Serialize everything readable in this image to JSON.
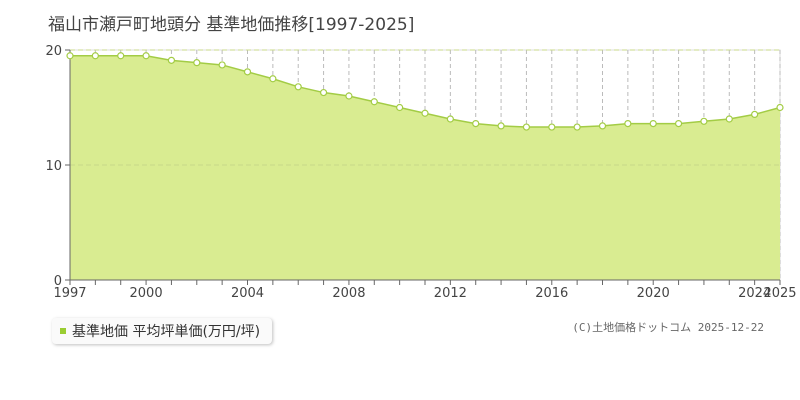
{
  "title": "福山市瀬戸町地頭分 基準地価推移[1997-2025]",
  "legend": {
    "label": "基準地価 平均坪単価(万円/坪)",
    "color": "#9acd32"
  },
  "copyright": "(C)土地価格ドットコム 2025-12-22",
  "colors": {
    "area_fill": "#d9ec91",
    "line": "#a3cc45",
    "marker_fill": "#ffffff",
    "grid": "#bbbbbb",
    "hgrid": "#c8d889",
    "axis": "#666666"
  },
  "chart_data": {
    "type": "area",
    "title": "",
    "xlabel": "",
    "ylabel": "",
    "xlim": [
      1997,
      2025
    ],
    "ylim": [
      0,
      20
    ],
    "yticks": [
      0,
      10,
      20
    ],
    "xtick_labels": [
      1997,
      2000,
      2004,
      2008,
      2012,
      2016,
      2020,
      2024,
      2025
    ],
    "grid": true,
    "series": [
      {
        "name": "基準地価 平均坪単価(万円/坪)",
        "x": [
          1997,
          1998,
          1999,
          2000,
          2001,
          2002,
          2003,
          2004,
          2005,
          2006,
          2007,
          2008,
          2009,
          2010,
          2011,
          2012,
          2013,
          2014,
          2015,
          2016,
          2017,
          2018,
          2019,
          2020,
          2021,
          2022,
          2023,
          2024,
          2025
        ],
        "values": [
          19.5,
          19.5,
          19.5,
          19.5,
          19.1,
          18.9,
          18.7,
          18.1,
          17.5,
          16.8,
          16.3,
          16.0,
          15.5,
          15.0,
          14.5,
          14.0,
          13.6,
          13.4,
          13.3,
          13.3,
          13.3,
          13.4,
          13.6,
          13.6,
          13.6,
          13.8,
          14.0,
          14.4,
          15.0
        ]
      }
    ]
  }
}
